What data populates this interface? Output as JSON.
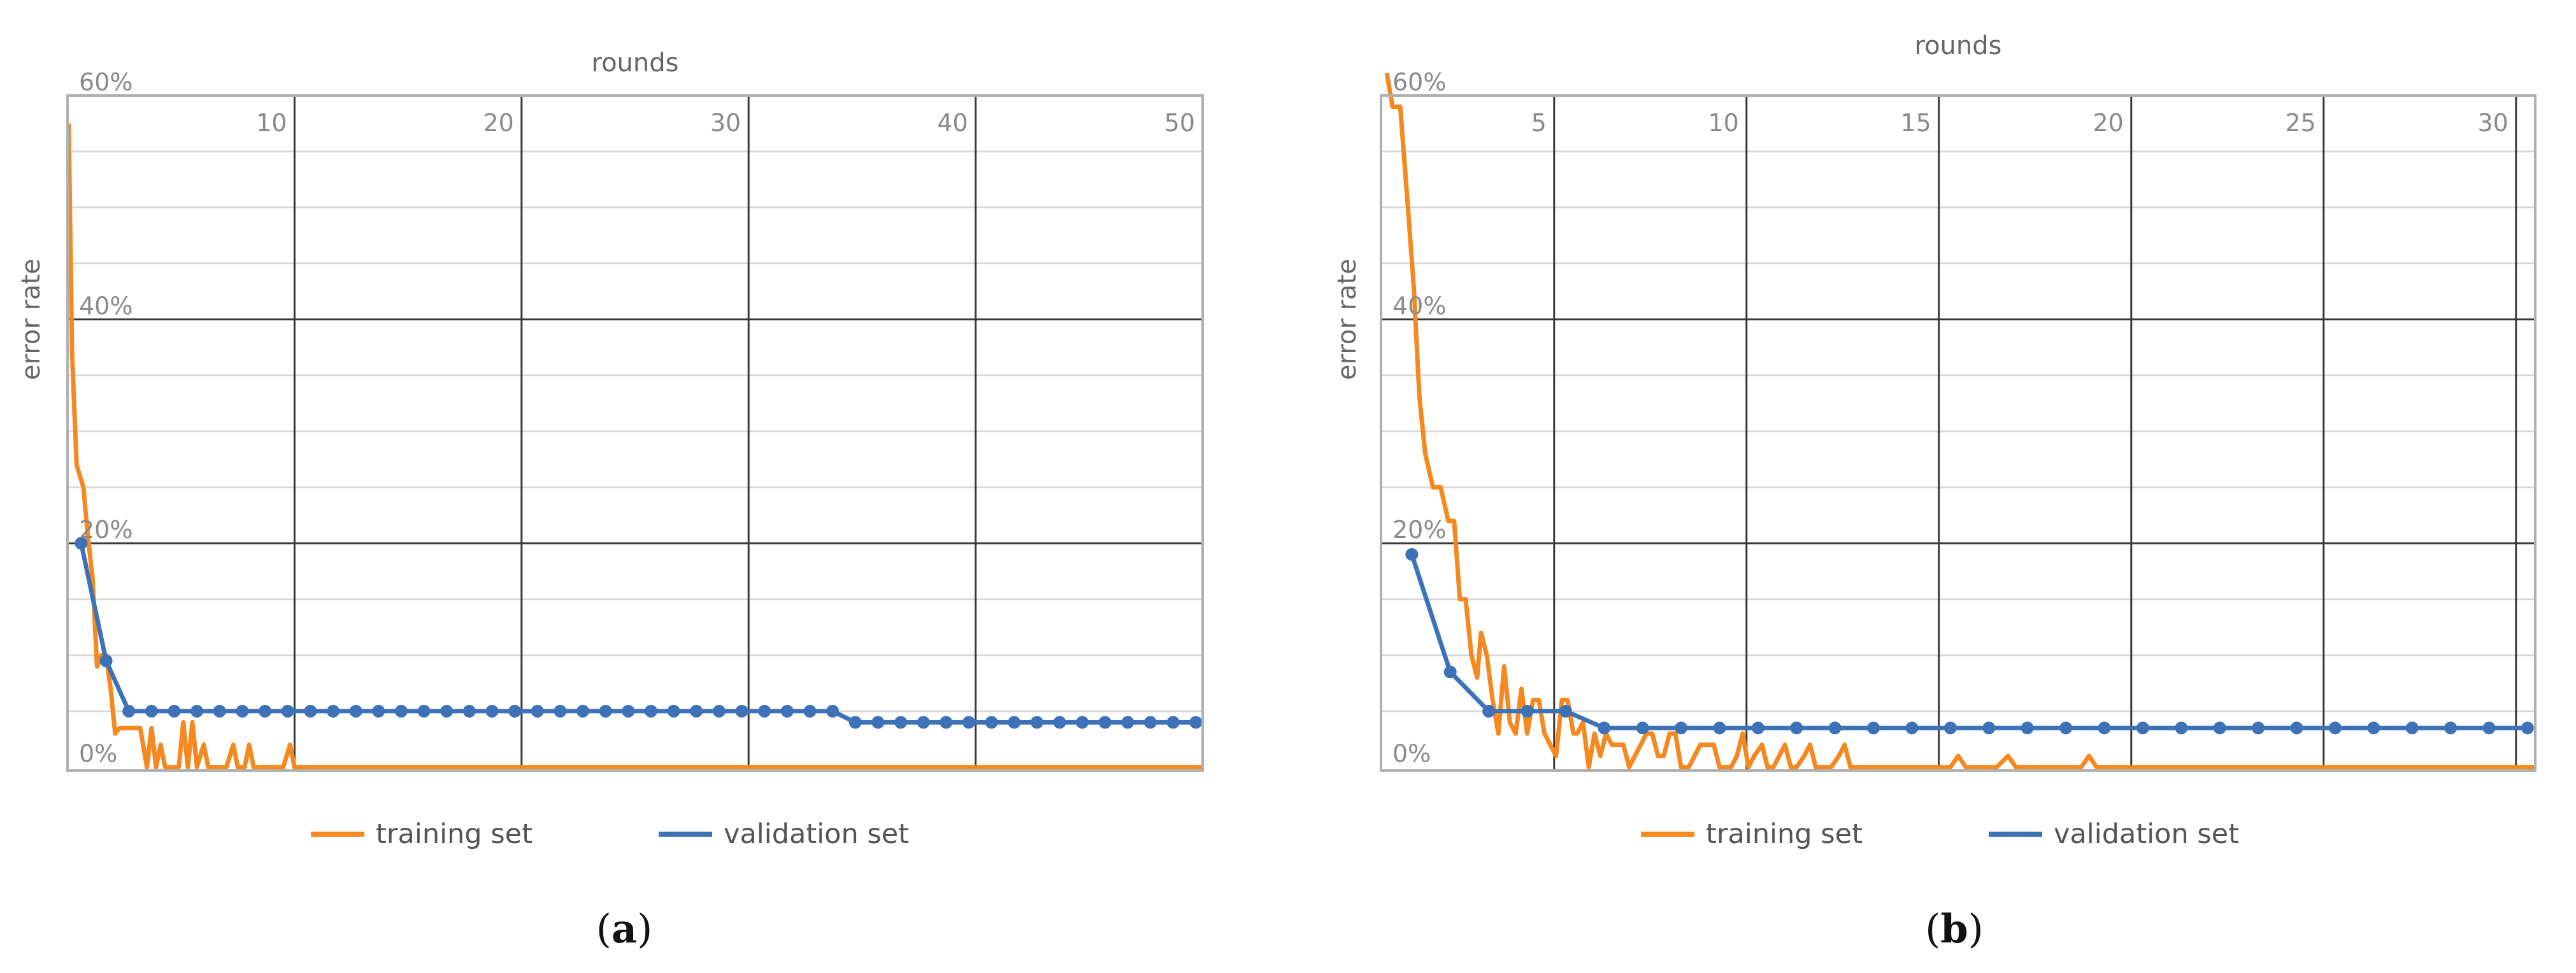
{
  "chart_data": [
    {
      "id": "a",
      "type": "line",
      "caption": {
        "open": "(",
        "letter": "a",
        "close": ")"
      },
      "xlabel": "rounds",
      "ylabel": "error rate",
      "xlim": [
        0,
        50
      ],
      "ylim": [
        -0.3,
        60
      ],
      "x_ticks": [
        {
          "v": 10,
          "label": "10"
        },
        {
          "v": 20,
          "label": "20"
        },
        {
          "v": 30,
          "label": "30"
        },
        {
          "v": 40,
          "label": "40"
        },
        {
          "v": 50,
          "label": "50"
        }
      ],
      "y_ticks": [
        {
          "v": 60,
          "label": "60%"
        },
        {
          "v": 40,
          "label": "40%"
        },
        {
          "v": 20,
          "label": "20%"
        },
        {
          "v": 0,
          "label": "0%"
        }
      ],
      "minor_y_step": 5,
      "grid": true,
      "legend_position": "bottom-center",
      "series": [
        {
          "name": "training set",
          "color": "#f5891f",
          "markers": false,
          "points": [
            [
              0.05,
              57.5
            ],
            [
              0.2,
              37
            ],
            [
              0.4,
              27
            ],
            [
              0.7,
              25
            ],
            [
              0.9,
              20.5
            ],
            [
              1.1,
              17
            ],
            [
              1.3,
              9
            ],
            [
              1.5,
              10
            ],
            [
              1.7,
              10
            ],
            [
              1.9,
              7
            ],
            [
              2.1,
              3
            ],
            [
              2.3,
              3.5
            ],
            [
              2.6,
              3.5
            ],
            [
              2.9,
              3.5
            ],
            [
              3.2,
              3.5
            ],
            [
              3.5,
              0
            ],
            [
              3.7,
              3.5
            ],
            [
              3.9,
              0
            ],
            [
              4.1,
              2
            ],
            [
              4.3,
              0
            ],
            [
              4.6,
              0
            ],
            [
              4.9,
              0
            ],
            [
              5.1,
              4
            ],
            [
              5.3,
              0
            ],
            [
              5.5,
              4
            ],
            [
              5.7,
              0
            ],
            [
              6.0,
              2
            ],
            [
              6.2,
              0
            ],
            [
              6.5,
              0
            ],
            [
              6.8,
              0
            ],
            [
              7.0,
              0
            ],
            [
              7.3,
              2
            ],
            [
              7.5,
              0
            ],
            [
              7.8,
              0
            ],
            [
              8.0,
              2
            ],
            [
              8.2,
              0
            ],
            [
              8.5,
              0
            ],
            [
              8.8,
              0
            ],
            [
              9.2,
              0
            ],
            [
              9.5,
              0
            ],
            [
              9.8,
              2
            ],
            [
              10.0,
              0
            ],
            [
              12,
              0
            ],
            [
              20,
              0
            ],
            [
              30,
              0
            ],
            [
              40,
              0
            ],
            [
              50,
              0
            ]
          ]
        },
        {
          "name": "validation set",
          "color": "#3d72b8",
          "markers": true,
          "points": [
            [
              0.6,
              20
            ],
            [
              1.7,
              9.5
            ],
            [
              2.7,
              5
            ],
            [
              3.7,
              5
            ],
            [
              4.7,
              5
            ],
            [
              5.7,
              5
            ],
            [
              6.7,
              5
            ],
            [
              7.7,
              5
            ],
            [
              8.7,
              5
            ],
            [
              9.7,
              5
            ],
            [
              10.7,
              5
            ],
            [
              11.7,
              5
            ],
            [
              12.7,
              5
            ],
            [
              13.7,
              5
            ],
            [
              14.7,
              5
            ],
            [
              15.7,
              5
            ],
            [
              16.7,
              5
            ],
            [
              17.7,
              5
            ],
            [
              18.7,
              5
            ],
            [
              19.7,
              5
            ],
            [
              20.7,
              5
            ],
            [
              21.7,
              5
            ],
            [
              22.7,
              5
            ],
            [
              23.7,
              5
            ],
            [
              24.7,
              5
            ],
            [
              25.7,
              5
            ],
            [
              26.7,
              5
            ],
            [
              27.7,
              5
            ],
            [
              28.7,
              5
            ],
            [
              29.7,
              5
            ],
            [
              30.7,
              5
            ],
            [
              31.7,
              5
            ],
            [
              32.7,
              5
            ],
            [
              33.7,
              5
            ],
            [
              34.7,
              4
            ],
            [
              35.7,
              4
            ],
            [
              36.7,
              4
            ],
            [
              37.7,
              4
            ],
            [
              38.7,
              4
            ],
            [
              39.7,
              4
            ],
            [
              40.7,
              4
            ],
            [
              41.7,
              4
            ],
            [
              42.7,
              4
            ],
            [
              43.7,
              4
            ],
            [
              44.7,
              4
            ],
            [
              45.7,
              4
            ],
            [
              46.7,
              4
            ],
            [
              47.7,
              4
            ],
            [
              48.7,
              4
            ],
            [
              49.7,
              4
            ]
          ]
        }
      ]
    },
    {
      "id": "b",
      "type": "line",
      "caption": {
        "open": "(",
        "letter": "b",
        "close": ")"
      },
      "xlabel": "rounds",
      "ylabel": "error rate",
      "xlim": [
        0.5,
        30.5
      ],
      "ylim": [
        -0.3,
        60
      ],
      "x_ticks": [
        {
          "v": 5,
          "label": "5"
        },
        {
          "v": 10,
          "label": "10"
        },
        {
          "v": 15,
          "label": "15"
        },
        {
          "v": 20,
          "label": "20"
        },
        {
          "v": 25,
          "label": "25"
        },
        {
          "v": 30,
          "label": "30"
        }
      ],
      "y_ticks": [
        {
          "v": 60,
          "label": "60%"
        },
        {
          "v": 40,
          "label": "40%"
        },
        {
          "v": 20,
          "label": "20%"
        },
        {
          "v": 0,
          "label": "0%"
        }
      ],
      "minor_y_step": 5,
      "grid": true,
      "legend_position": "bottom-center",
      "series": [
        {
          "name": "training set",
          "color": "#f5891f",
          "markers": false,
          "points": [
            [
              0.65,
              62
            ],
            [
              0.8,
              59
            ],
            [
              1.0,
              59
            ],
            [
              1.2,
              50
            ],
            [
              1.35,
              43
            ],
            [
              1.5,
              33
            ],
            [
              1.65,
              28
            ],
            [
              1.85,
              25
            ],
            [
              2.05,
              25
            ],
            [
              2.25,
              22
            ],
            [
              2.4,
              22
            ],
            [
              2.55,
              15
            ],
            [
              2.7,
              15
            ],
            [
              2.85,
              10
            ],
            [
              3.0,
              8
            ],
            [
              3.1,
              12
            ],
            [
              3.25,
              10
            ],
            [
              3.4,
              6
            ],
            [
              3.55,
              3
            ],
            [
              3.7,
              9
            ],
            [
              3.85,
              4
            ],
            [
              4.0,
              3
            ],
            [
              4.15,
              7
            ],
            [
              4.3,
              3
            ],
            [
              4.45,
              6
            ],
            [
              4.6,
              6
            ],
            [
              4.75,
              3
            ],
            [
              4.9,
              2
            ],
            [
              5.05,
              1
            ],
            [
              5.2,
              6
            ],
            [
              5.35,
              6
            ],
            [
              5.5,
              3
            ],
            [
              5.6,
              3
            ],
            [
              5.75,
              4
            ],
            [
              5.9,
              0
            ],
            [
              6.05,
              3
            ],
            [
              6.2,
              1
            ],
            [
              6.35,
              3
            ],
            [
              6.5,
              2
            ],
            [
              6.65,
              2
            ],
            [
              6.8,
              2
            ],
            [
              6.95,
              0
            ],
            [
              7.1,
              1
            ],
            [
              7.25,
              2
            ],
            [
              7.4,
              3
            ],
            [
              7.55,
              3
            ],
            [
              7.7,
              1
            ],
            [
              7.85,
              1
            ],
            [
              8.0,
              3
            ],
            [
              8.15,
              3
            ],
            [
              8.3,
              0
            ],
            [
              8.5,
              0
            ],
            [
              8.65,
              1
            ],
            [
              8.8,
              2
            ],
            [
              9.0,
              2
            ],
            [
              9.15,
              2
            ],
            [
              9.3,
              0
            ],
            [
              9.45,
              0
            ],
            [
              9.6,
              0
            ],
            [
              9.75,
              1
            ],
            [
              9.9,
              3
            ],
            [
              10.05,
              0
            ],
            [
              10.2,
              1
            ],
            [
              10.4,
              2
            ],
            [
              10.55,
              0
            ],
            [
              10.7,
              0
            ],
            [
              10.85,
              1
            ],
            [
              11.0,
              2
            ],
            [
              11.15,
              0
            ],
            [
              11.3,
              0
            ],
            [
              11.5,
              1
            ],
            [
              11.65,
              2
            ],
            [
              11.8,
              0
            ],
            [
              12.0,
              0
            ],
            [
              12.2,
              0
            ],
            [
              12.4,
              1
            ],
            [
              12.55,
              2
            ],
            [
              12.7,
              0
            ],
            [
              12.9,
              0
            ],
            [
              13.1,
              0
            ],
            [
              13.3,
              0
            ],
            [
              13.5,
              0
            ],
            [
              13.7,
              0
            ],
            [
              13.9,
              0
            ],
            [
              14.1,
              0
            ],
            [
              14.3,
              0
            ],
            [
              14.5,
              0
            ],
            [
              14.7,
              0
            ],
            [
              14.9,
              0
            ],
            [
              15.1,
              0
            ],
            [
              15.3,
              0
            ],
            [
              15.5,
              1
            ],
            [
              15.7,
              0
            ],
            [
              15.9,
              0
            ],
            [
              16.2,
              0
            ],
            [
              16.5,
              0
            ],
            [
              16.8,
              1
            ],
            [
              17.0,
              0
            ],
            [
              17.3,
              0
            ],
            [
              17.6,
              0
            ],
            [
              18.0,
              0
            ],
            [
              18.4,
              0
            ],
            [
              18.7,
              0
            ],
            [
              18.9,
              1
            ],
            [
              19.1,
              0
            ],
            [
              20,
              0
            ],
            [
              25,
              0
            ],
            [
              30.5,
              0
            ]
          ]
        },
        {
          "name": "validation set",
          "color": "#3d72b8",
          "markers": true,
          "points": [
            [
              1.3,
              19
            ],
            [
              2.3,
              8.5
            ],
            [
              3.3,
              5
            ],
            [
              4.3,
              5
            ],
            [
              5.3,
              5
            ],
            [
              6.3,
              3.5
            ],
            [
              7.3,
              3.5
            ],
            [
              8.3,
              3.5
            ],
            [
              9.3,
              3.5
            ],
            [
              10.3,
              3.5
            ],
            [
              11.3,
              3.5
            ],
            [
              12.3,
              3.5
            ],
            [
              13.3,
              3.5
            ],
            [
              14.3,
              3.5
            ],
            [
              15.3,
              3.5
            ],
            [
              16.3,
              3.5
            ],
            [
              17.3,
              3.5
            ],
            [
              18.3,
              3.5
            ],
            [
              19.3,
              3.5
            ],
            [
              20.3,
              3.5
            ],
            [
              21.3,
              3.5
            ],
            [
              22.3,
              3.5
            ],
            [
              23.3,
              3.5
            ],
            [
              24.3,
              3.5
            ],
            [
              25.3,
              3.5
            ],
            [
              26.3,
              3.5
            ],
            [
              27.3,
              3.5
            ],
            [
              28.3,
              3.5
            ],
            [
              29.3,
              3.5
            ],
            [
              30.3,
              3.5
            ]
          ]
        }
      ]
    }
  ]
}
